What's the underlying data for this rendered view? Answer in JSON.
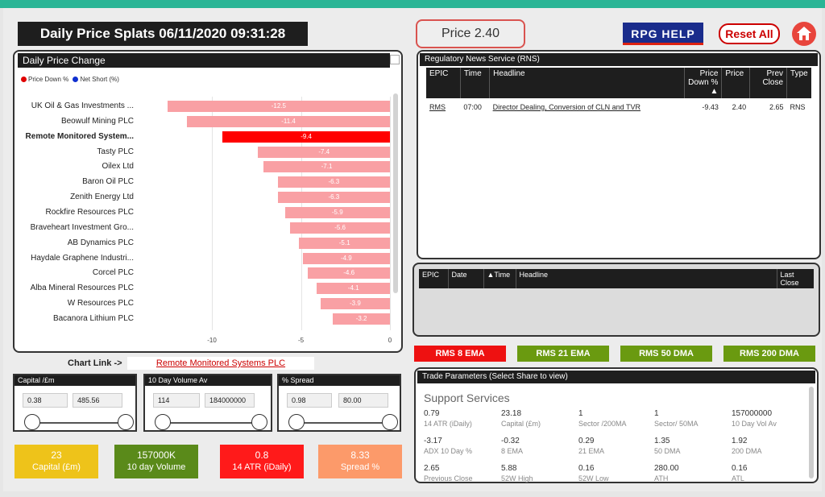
{
  "header": {
    "title": "Daily Price Splats 06/11/2020 09:31:28",
    "price": "Price 2.40",
    "rpg_help": "RPG  HELP",
    "reset_all": "Reset All"
  },
  "price_change": {
    "title": "Daily Price Change",
    "legend": [
      {
        "label": "Price Down %",
        "color": "#e00000"
      },
      {
        "label": "Net Short  (%)",
        "color": "#1030d0"
      }
    ],
    "chart_link_label": "Chart Link ->",
    "chart_link_value": "Remote Monitored Systems PLC"
  },
  "chart_data": {
    "type": "bar",
    "orientation": "horizontal",
    "title": "Daily Price Change",
    "categories": [
      "UK Oil & Gas Investments ...",
      "Beowulf Mining PLC",
      "Remote Monitored System...",
      "Tasty PLC",
      "Oilex Ltd",
      "Baron Oil PLC",
      "Zenith Energy Ltd",
      "Rockfire Resources PLC",
      "Braveheart Investment Gro...",
      "AB Dynamics PLC",
      "Haydale Graphene Industri...",
      "Corcel PLC",
      "Alba Mineral Resources PLC",
      "W Resources PLC",
      "Bacanora Lithium PLC"
    ],
    "series": [
      {
        "name": "Price Down %",
        "values": [
          -12.5,
          -11.4,
          -9.4,
          -7.4,
          -7.1,
          -6.3,
          -6.3,
          -5.9,
          -5.6,
          -5.1,
          -4.9,
          -4.6,
          -4.1,
          -3.9,
          -3.2
        ]
      }
    ],
    "value_labels": [
      "-12.5",
      "-11.4",
      "-9.4",
      "-7.4",
      "-7.1",
      "-6.3",
      "-6.3",
      "-5.9",
      "-5.6",
      "-5.1",
      "-4.9",
      "-4.6",
      "-4.1",
      "-3.9",
      "-3.2"
    ],
    "selected_index": 2,
    "xlim": [
      -12.5,
      0
    ],
    "ticks": [
      "-10",
      "-5",
      "0"
    ],
    "colors": {
      "bar": "#f9a0a4",
      "selected": "#ff0000"
    }
  },
  "rns": {
    "title": "Regulatory News Service (RNS)",
    "columns": [
      "EPIC",
      "Time",
      "Headline",
      "Price Down %",
      "Price",
      "Prev Close",
      "Type"
    ],
    "rows": [
      {
        "epic": "RMS",
        "time": "07:00",
        "headline": "Director Dealing, Conversion of CLN and TVR",
        "down": "-9.43",
        "price": "2.40",
        "prev": "2.65",
        "type": "RNS"
      }
    ]
  },
  "second_table": {
    "columns": [
      "EPIC",
      "Date",
      "Time",
      "Headline",
      "Last Close"
    ]
  },
  "ema_buttons": [
    {
      "label": "RMS 8 EMA",
      "color": "#ee1111"
    },
    {
      "label": "RMS 21 EMA",
      "color": "#6a9a10"
    },
    {
      "label": "RMS 50 DMA",
      "color": "#6a9a10"
    },
    {
      "label": "RMS 200 DMA",
      "color": "#6a9a10"
    }
  ],
  "slicers": [
    {
      "title": "Capital /£m",
      "min": "0.38",
      "max": "485.56"
    },
    {
      "title": "10 Day Volume Av",
      "min": "114",
      "max": "184000000"
    },
    {
      "title": "% Spread",
      "min": "0.98",
      "max": "80.00"
    }
  ],
  "kpis": [
    {
      "value": "23",
      "label": "Capital (£m)",
      "color": "#eec31a"
    },
    {
      "value": "157000K",
      "label": "10 day Volume",
      "color": "#5a8a1a"
    },
    {
      "value": "0.8",
      "label": "14 ATR (iDaily)",
      "color": "#ff1a1a"
    },
    {
      "value": "8.33",
      "label": "Spread %",
      "color": "#fc9a6a"
    }
  ],
  "trade_params": {
    "title": "Trade Parameters (Select Share to view)",
    "sector": "Support Services",
    "rows": [
      [
        {
          "v": "0.79",
          "l": "14 ATR (iDaily)"
        },
        {
          "v": "23.18",
          "l": "Capital (£m)"
        },
        {
          "v": "1",
          "l": "Sector /200MA"
        },
        {
          "v": "1",
          "l": "Sector/ 50MA"
        },
        {
          "v": "157000000",
          "l": "10 Day Vol Av"
        }
      ],
      [
        {
          "v": "-3.17",
          "l": "ADX 10 Day %"
        },
        {
          "v": "-0.32",
          "l": "8 EMA"
        },
        {
          "v": "0.29",
          "l": "21 EMA"
        },
        {
          "v": "1.35",
          "l": "50 DMA"
        },
        {
          "v": "1.92",
          "l": "200 DMA"
        }
      ],
      [
        {
          "v": "2.65",
          "l": "Previous Close"
        },
        {
          "v": "5.88",
          "l": "52W High"
        },
        {
          "v": "0.16",
          "l": "52W Low"
        },
        {
          "v": "280.00",
          "l": "ATH"
        },
        {
          "v": "0.16",
          "l": "ATL"
        }
      ]
    ]
  }
}
